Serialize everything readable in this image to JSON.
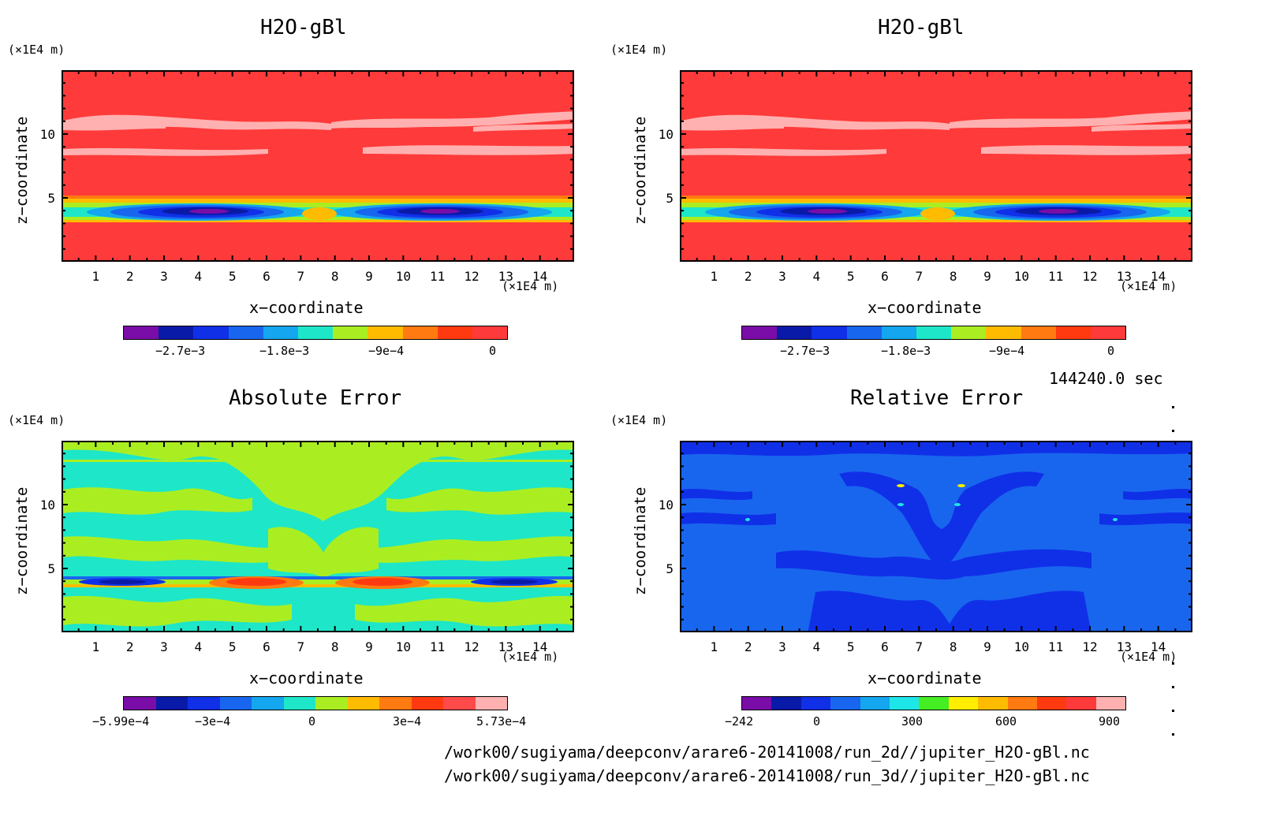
{
  "panels": [
    {
      "title": "H2O-gBl",
      "yunit": "(×1E4 m)",
      "xunit": "(×1E4 m)",
      "xlabel": "x−coordinate",
      "ylabel": "z−coordinate",
      "colorbar_labels": [
        "−2.7e−3",
        "−1.8e−3",
        "−9e−4",
        "0"
      ],
      "colors": [
        "#7a0da8",
        "#0a1aa8",
        "#1030e8",
        "#1966ee",
        "#14a6ee",
        "#1ee6c8",
        "#aaee22",
        "#ffbb00",
        "#ff7a10",
        "#ff3a10",
        "#ff3a3a"
      ]
    },
    {
      "title": "H2O-gBl",
      "yunit": "(×1E4 m)",
      "xunit": "(×1E4 m)",
      "xlabel": "x−coordinate",
      "ylabel": "z−coordinate",
      "colorbar_labels": [
        "−2.7e−3",
        "−1.8e−3",
        "−9e−4",
        "0"
      ],
      "colors": [
        "#7a0da8",
        "#0a1aa8",
        "#1030e8",
        "#1966ee",
        "#14a6ee",
        "#1ee6c8",
        "#aaee22",
        "#ffbb00",
        "#ff7a10",
        "#ff3a10",
        "#ff3a3a"
      ]
    },
    {
      "title": "Absolute Error",
      "yunit": "(×1E4 m)",
      "xunit": "(×1E4 m)",
      "xlabel": "x−coordinate",
      "ylabel": "z−coordinate",
      "colorbar_labels": [
        "−5.99e−4",
        "−3e−4",
        "0",
        "3e−4",
        "5.73e−4"
      ],
      "colors": [
        "#7a0da8",
        "#0a1aa8",
        "#1030e8",
        "#1966ee",
        "#14a6ee",
        "#1ee6c8",
        "#aaee22",
        "#ffbb00",
        "#ff7a10",
        "#ff3a10",
        "#ff4a4a",
        "#ffb0b0"
      ]
    },
    {
      "title": "Relative Error",
      "yunit": "(×1E4 m)",
      "xunit": "(×1E4 m)",
      "xlabel": "x−coordinate",
      "ylabel": "z−coordinate",
      "colorbar_labels": [
        "−242",
        "0",
        "300",
        "600",
        "900"
      ],
      "colors": [
        "#7a0da8",
        "#0a1aa8",
        "#1030e8",
        "#1966ee",
        "#14a6ee",
        "#1ee6e8",
        "#44ee22",
        "#ffee00",
        "#ffbb00",
        "#ff7a10",
        "#ff3a10",
        "#ff3a3a",
        "#ffb0b0"
      ]
    }
  ],
  "chart_data": [
    {
      "type": "heatmap",
      "title": "H2O-gBl",
      "xlabel": "x−coordinate",
      "ylabel": "z−coordinate",
      "xunit": "(×1E4 m)",
      "yunit": "(×1E4 m)",
      "xlim": [
        0,
        15
      ],
      "ylim": [
        0,
        15
      ],
      "xticks": [
        1,
        2,
        3,
        4,
        5,
        6,
        7,
        8,
        9,
        10,
        11,
        12,
        13,
        14
      ],
      "yticks": [
        5,
        10
      ],
      "colorbar": {
        "min": -0.0033,
        "max": 0,
        "labels": [
          "−2.7e−3",
          "−1.8e−3",
          "−9e−4",
          "0"
        ]
      }
    },
    {
      "type": "heatmap",
      "title": "H2O-gBl",
      "xlabel": "x−coordinate",
      "ylabel": "z−coordinate",
      "xunit": "(×1E4 m)",
      "yunit": "(×1E4 m)",
      "xlim": [
        0,
        15
      ],
      "ylim": [
        0,
        15
      ],
      "xticks": [
        1,
        2,
        3,
        4,
        5,
        6,
        7,
        8,
        9,
        10,
        11,
        12,
        13,
        14
      ],
      "yticks": [
        5,
        10
      ],
      "colorbar": {
        "min": -0.0033,
        "max": 0,
        "labels": [
          "−2.7e−3",
          "−1.8e−3",
          "−9e−4",
          "0"
        ]
      }
    },
    {
      "type": "heatmap",
      "title": "Absolute Error",
      "xlabel": "x−coordinate",
      "ylabel": "z−coordinate",
      "xunit": "(×1E4 m)",
      "yunit": "(×1E4 m)",
      "xlim": [
        0,
        15
      ],
      "ylim": [
        0,
        15
      ],
      "xticks": [
        1,
        2,
        3,
        4,
        5,
        6,
        7,
        8,
        9,
        10,
        11,
        12,
        13,
        14
      ],
      "yticks": [
        5,
        10
      ],
      "colorbar": {
        "min": -0.000599,
        "max": 0.000573,
        "labels": [
          "−5.99e−4",
          "−3e−4",
          "0",
          "3e−4",
          "5.73e−4"
        ]
      }
    },
    {
      "type": "heatmap",
      "title": "Relative Error",
      "xlabel": "x−coordinate",
      "ylabel": "z−coordinate",
      "xunit": "(×1E4 m)",
      "yunit": "(×1E4 m)",
      "xlim": [
        0,
        15
      ],
      "ylim": [
        0,
        15
      ],
      "xticks": [
        1,
        2,
        3,
        4,
        5,
        6,
        7,
        8,
        9,
        10,
        11,
        12,
        13,
        14
      ],
      "yticks": [
        5,
        10
      ],
      "colorbar": {
        "min": -242,
        "max": 900,
        "labels": [
          "−242",
          "0",
          "300",
          "600",
          "900"
        ]
      }
    }
  ],
  "time_label": "144240.0 sec",
  "files": [
    "/work00/sugiyama/deepconv/arare6-20141008/run_2d//jupiter_H2O-gBl.nc",
    "/work00/sugiyama/deepconv/arare6-20141008/run_3d//jupiter_H2O-gBl.nc"
  ]
}
